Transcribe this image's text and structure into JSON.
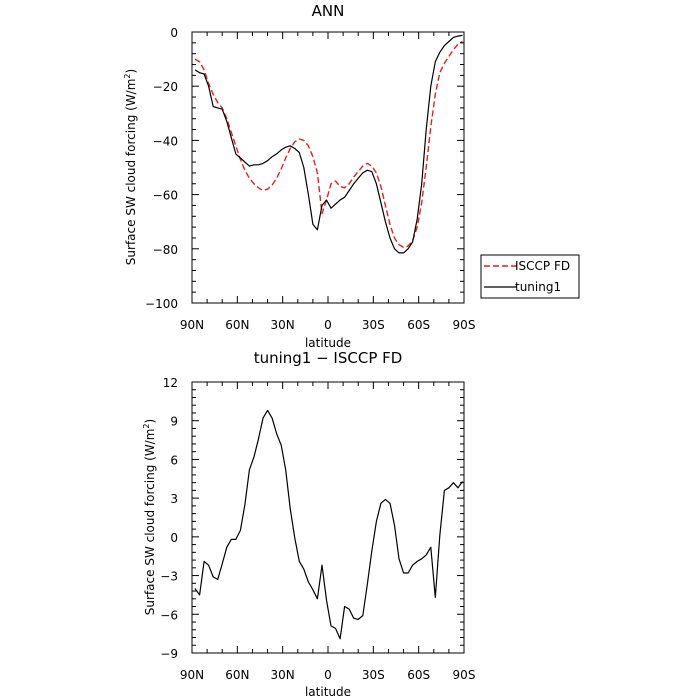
{
  "chart_data": [
    {
      "type": "line",
      "title": "ANN",
      "xlabel": "latitude",
      "ylabel": "Surface SW cloud forcing (W/m²)",
      "ylabel_base": "Surface SW cloud forcing (W/m",
      "ylabel_sup": "2",
      "ylabel_end": ")",
      "xlim": [
        90,
        -90
      ],
      "ylim": [
        -100,
        0
      ],
      "x_ticks": [
        {
          "value": 90,
          "label": "90N"
        },
        {
          "value": 60,
          "label": "60N"
        },
        {
          "value": 30,
          "label": "30N"
        },
        {
          "value": 0,
          "label": "0"
        },
        {
          "value": -30,
          "label": "30S"
        },
        {
          "value": -60,
          "label": "60S"
        },
        {
          "value": -90,
          "label": "90S"
        }
      ],
      "y_ticks": [
        {
          "value": 0,
          "label": "0"
        },
        {
          "value": -20,
          "label": "−20"
        },
        {
          "value": -40,
          "label": "−40"
        },
        {
          "value": -60,
          "label": "−60"
        },
        {
          "value": -80,
          "label": "−80"
        },
        {
          "value": -100,
          "label": "−100"
        }
      ],
      "grid": false,
      "legend_position": "outside-right",
      "series": [
        {
          "name": "ISCCP FD",
          "color": "#e8201a",
          "dash": "dashed",
          "x": [
            88,
            85,
            82,
            79,
            76,
            73,
            70,
            67,
            64,
            61,
            58,
            55,
            52,
            49,
            46,
            43,
            40,
            37,
            34,
            31,
            28,
            25,
            22,
            19,
            16,
            13,
            10,
            7,
            4,
            1,
            -2,
            -5,
            -8,
            -11,
            -14,
            -17,
            -20,
            -23,
            -26,
            -29,
            -32,
            -35,
            -38,
            -41,
            -44,
            -47,
            -50,
            -53,
            -56,
            -59,
            -62,
            -65,
            -68,
            -71,
            -74,
            -77,
            -80,
            -83,
            -86,
            -89
          ],
          "y": [
            -10,
            -11,
            -14,
            -19,
            -23,
            -26,
            -28,
            -32,
            -37,
            -42,
            -47,
            -51,
            -54,
            -56,
            -57.5,
            -58.5,
            -58,
            -56.5,
            -54,
            -50.5,
            -46.5,
            -43,
            -40.5,
            -39.5,
            -40,
            -42,
            -46,
            -52,
            -67,
            -62,
            -56,
            -55,
            -57,
            -57.5,
            -56,
            -53.5,
            -51.5,
            -49.5,
            -48.5,
            -49.5,
            -52,
            -57,
            -64,
            -71,
            -76,
            -78.5,
            -79.5,
            -79,
            -77,
            -72,
            -63,
            -50,
            -35,
            -23,
            -15,
            -11.5,
            -9,
            -6.5,
            -4.5,
            -3.5
          ]
        },
        {
          "name": "tuning1",
          "color": "#000000",
          "dash": "solid",
          "x": [
            88,
            85,
            82,
            79,
            76,
            73,
            70,
            67,
            64,
            61,
            58,
            55,
            52,
            49,
            46,
            43,
            40,
            37,
            34,
            31,
            28,
            25,
            22,
            19,
            16,
            13,
            10,
            7,
            4,
            1,
            -2,
            -5,
            -8,
            -11,
            -14,
            -17,
            -20,
            -23,
            -26,
            -29,
            -32,
            -35,
            -38,
            -41,
            -44,
            -47,
            -50,
            -53,
            -56,
            -59,
            -62,
            -65,
            -68,
            -71,
            -74,
            -77,
            -80,
            -83,
            -86,
            -89
          ],
          "y": [
            -14,
            -15,
            -15.5,
            -20,
            -27.5,
            -28,
            -28.5,
            -33,
            -39,
            -45,
            -46.5,
            -48,
            -49.5,
            -49,
            -49,
            -48.5,
            -47.5,
            -46,
            -45,
            -43.5,
            -42.5,
            -42,
            -43,
            -44.5,
            -50,
            -60,
            -71,
            -73,
            -64,
            -62,
            -65,
            -63.5,
            -62,
            -61,
            -58.5,
            -56,
            -54,
            -52,
            -51,
            -51.5,
            -56,
            -63,
            -70,
            -76,
            -80,
            -81.5,
            -81.5,
            -80,
            -77.5,
            -69,
            -56,
            -36,
            -20,
            -11,
            -7.5,
            -5,
            -3.5,
            -2,
            -1.5,
            -1.2
          ]
        }
      ]
    },
    {
      "type": "line",
      "title": "tuning1 − ISCCP FD",
      "xlabel": "latitude",
      "ylabel": "Surface SW cloud forcing (W/m²)",
      "ylabel_base": "Surface SW cloud forcing (W/m",
      "ylabel_sup": "2",
      "ylabel_end": ")",
      "xlim": [
        90,
        -90
      ],
      "ylim": [
        -9,
        12
      ],
      "x_ticks": [
        {
          "value": 90,
          "label": "90N"
        },
        {
          "value": 60,
          "label": "60N"
        },
        {
          "value": 30,
          "label": "30N"
        },
        {
          "value": 0,
          "label": "0"
        },
        {
          "value": -30,
          "label": "30S"
        },
        {
          "value": -60,
          "label": "60S"
        },
        {
          "value": -90,
          "label": "90S"
        }
      ],
      "y_ticks": [
        {
          "value": 12,
          "label": "12"
        },
        {
          "value": 9,
          "label": "9"
        },
        {
          "value": 6,
          "label": "6"
        },
        {
          "value": 3,
          "label": "3"
        },
        {
          "value": 0,
          "label": "0"
        },
        {
          "value": -3,
          "label": "−3"
        },
        {
          "value": -6,
          "label": "−6"
        },
        {
          "value": -9,
          "label": "−9"
        }
      ],
      "grid": false,
      "series": [
        {
          "color": "#000000",
          "dash": "solid",
          "x": [
            88,
            85,
            82,
            79,
            76,
            73,
            70,
            67,
            64,
            61,
            58,
            55,
            52,
            49,
            46,
            43,
            40,
            37,
            34,
            31,
            28,
            25,
            22,
            19,
            16,
            13,
            10,
            7,
            4,
            1,
            -2,
            -5,
            -8,
            -11,
            -14,
            -17,
            -20,
            -23,
            -26,
            -29,
            -32,
            -35,
            -38,
            -41,
            -44,
            -47,
            -50,
            -53,
            -56,
            -59,
            -62,
            -65,
            -68,
            -71,
            -74,
            -77,
            -80,
            -83,
            -86,
            -89
          ],
          "y": [
            -4,
            -4.5,
            -1.9,
            -2.2,
            -3.1,
            -3.3,
            -2.1,
            -0.8,
            -0.2,
            -0.2,
            0.5,
            2.5,
            5.2,
            6.2,
            7.6,
            9.2,
            9.8,
            9.2,
            8.0,
            7.1,
            5.2,
            2.2,
            -0.1,
            -1.9,
            -2.5,
            -3.5,
            -4.1,
            -4.8,
            -2.2,
            -4.9,
            -6.9,
            -7.1,
            -7.9,
            -5.4,
            -5.6,
            -6.3,
            -6.4,
            -6.1,
            -3.7,
            -1.1,
            1.2,
            2.6,
            2.9,
            2.6,
            0.9,
            -1.7,
            -2.8,
            -2.8,
            -2.2,
            -1.9,
            -1.7,
            -1.4,
            -0.8,
            -4.7,
            0.1,
            3.6,
            3.8,
            4.2,
            3.8,
            4.3
          ]
        }
      ]
    }
  ]
}
